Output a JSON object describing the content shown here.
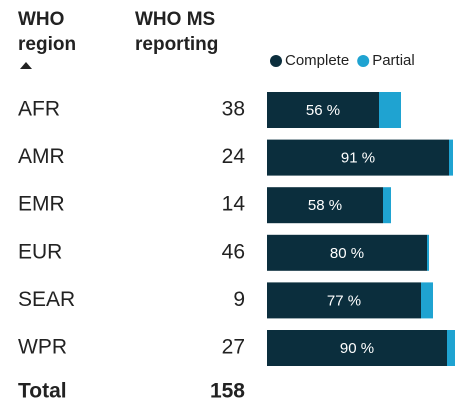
{
  "table": {
    "headers": [
      [
        "WHO",
        "region"
      ],
      [
        "WHO MS",
        "reporting"
      ]
    ],
    "legend": [
      {
        "name": "Complete",
        "color": "#0b2e3d"
      },
      {
        "name": "Partial",
        "color": "#1fa3d1"
      }
    ],
    "rows": [
      {
        "region": "AFR",
        "reporting": 38,
        "complete": 56,
        "complete_label": "56 %",
        "partial": 11
      },
      {
        "region": "AMR",
        "reporting": 24,
        "complete": 91,
        "complete_label": "91 %",
        "partial": 2
      },
      {
        "region": "EMR",
        "reporting": 14,
        "complete": 58,
        "complete_label": "58 %",
        "partial": 4
      },
      {
        "region": "EUR",
        "reporting": 46,
        "complete": 80,
        "complete_label": "80 %",
        "partial": 1
      },
      {
        "region": "SEAR",
        "reporting": 9,
        "complete": 77,
        "complete_label": "77 %",
        "partial": 6
      },
      {
        "region": "WPR",
        "reporting": 27,
        "complete": 90,
        "complete_label": "90 %",
        "partial": 4
      }
    ],
    "total": {
      "label": "Total",
      "reporting": 158
    }
  }
}
